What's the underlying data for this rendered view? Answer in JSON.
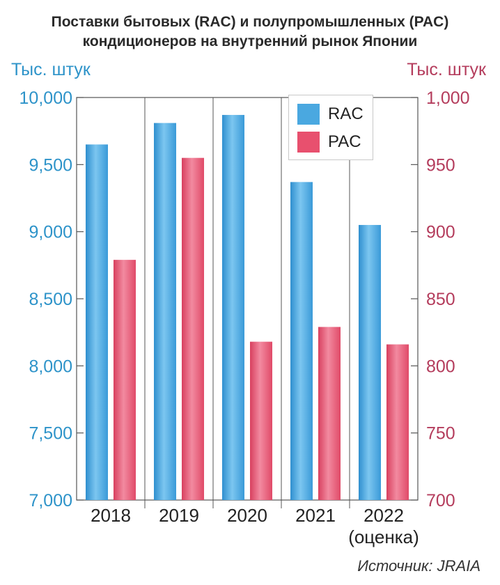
{
  "title_line1": "Поставки бытовых (RAC) и полупромышленных (PAC)",
  "title_line2": "кондиционеров на внутренний рынок Японии",
  "source": "Источник: JRAIA",
  "colors": {
    "rac": "#4aa8e0",
    "pac": "#e8506e",
    "left_axis": "#2d93c9",
    "right_axis": "#b43c5c"
  },
  "chart_data": {
    "type": "bar",
    "categories": [
      "2018",
      "2019",
      "2020",
      "2021",
      "2022"
    ],
    "category_sublabels": [
      "",
      "",
      "",
      "",
      "(оценка)"
    ],
    "series": [
      {
        "name": "RAC",
        "axis": "left",
        "values": [
          9650,
          9810,
          9870,
          9370,
          9050
        ]
      },
      {
        "name": "PAC",
        "axis": "right",
        "values": [
          879,
          955,
          818,
          829,
          816
        ]
      }
    ],
    "y_left": {
      "label": "Тыс. штук",
      "ylim": [
        7000,
        10000
      ],
      "ticks": [
        "7,000",
        "7,500",
        "8,000",
        "8,500",
        "9,000",
        "9,500",
        "10,000"
      ]
    },
    "y_right": {
      "label": "Тыс. штук",
      "ylim": [
        700,
        1000
      ],
      "ticks": [
        "700",
        "750",
        "800",
        "850",
        "900",
        "950",
        "1,000"
      ]
    },
    "legend_position": "top-right",
    "grid": false
  }
}
